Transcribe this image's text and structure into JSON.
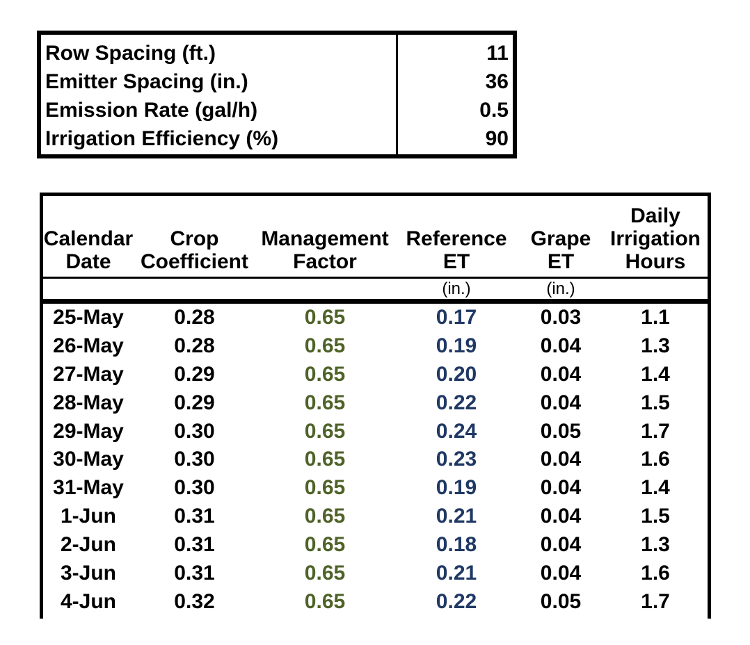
{
  "colors": {
    "text": "#000000",
    "management_factor_values": "#4F6228",
    "reference_et_values": "#1F3864",
    "border": "#000000",
    "background": "#ffffff"
  },
  "params": {
    "rows": [
      {
        "label": "Row Spacing (ft.)",
        "value": "11"
      },
      {
        "label": "Emitter Spacing (in.)",
        "value": "36"
      },
      {
        "label": "Emission Rate (gal/h)",
        "value": "0.5"
      },
      {
        "label": "Irrigation Efficiency (%)",
        "value": "90"
      }
    ]
  },
  "schedule": {
    "columns": [
      {
        "id": "calendar-date",
        "lines": [
          "Calendar",
          "Date"
        ],
        "unit": "",
        "value_color": "#000000"
      },
      {
        "id": "crop-coefficient",
        "lines": [
          "Crop",
          "Coefficient"
        ],
        "unit": "",
        "value_color": "#000000"
      },
      {
        "id": "management-factor",
        "lines": [
          "Management",
          "Factor"
        ],
        "unit": "",
        "value_color": "#4F6228"
      },
      {
        "id": "reference-et",
        "lines": [
          "Reference",
          "ET"
        ],
        "unit": "(in.)",
        "value_color": "#1F3864"
      },
      {
        "id": "grape-et",
        "lines": [
          "Grape",
          "ET"
        ],
        "unit": "(in.)",
        "value_color": "#000000"
      },
      {
        "id": "daily-irrigation-hours",
        "lines": [
          "Daily",
          "Irrigation",
          "Hours"
        ],
        "unit": "",
        "value_color": "#000000"
      }
    ],
    "rows": [
      [
        "25-May",
        "0.28",
        "0.65",
        "0.17",
        "0.03",
        "1.1"
      ],
      [
        "26-May",
        "0.28",
        "0.65",
        "0.19",
        "0.04",
        "1.3"
      ],
      [
        "27-May",
        "0.29",
        "0.65",
        "0.20",
        "0.04",
        "1.4"
      ],
      [
        "28-May",
        "0.29",
        "0.65",
        "0.22",
        "0.04",
        "1.5"
      ],
      [
        "29-May",
        "0.30",
        "0.65",
        "0.24",
        "0.05",
        "1.7"
      ],
      [
        "30-May",
        "0.30",
        "0.65",
        "0.23",
        "0.04",
        "1.6"
      ],
      [
        "31-May",
        "0.30",
        "0.65",
        "0.19",
        "0.04",
        "1.4"
      ],
      [
        "1-Jun",
        "0.31",
        "0.65",
        "0.21",
        "0.04",
        "1.5"
      ],
      [
        "2-Jun",
        "0.31",
        "0.65",
        "0.18",
        "0.04",
        "1.3"
      ],
      [
        "3-Jun",
        "0.31",
        "0.65",
        "0.21",
        "0.04",
        "1.6"
      ],
      [
        "4-Jun",
        "0.32",
        "0.65",
        "0.22",
        "0.05",
        "1.7"
      ]
    ]
  }
}
